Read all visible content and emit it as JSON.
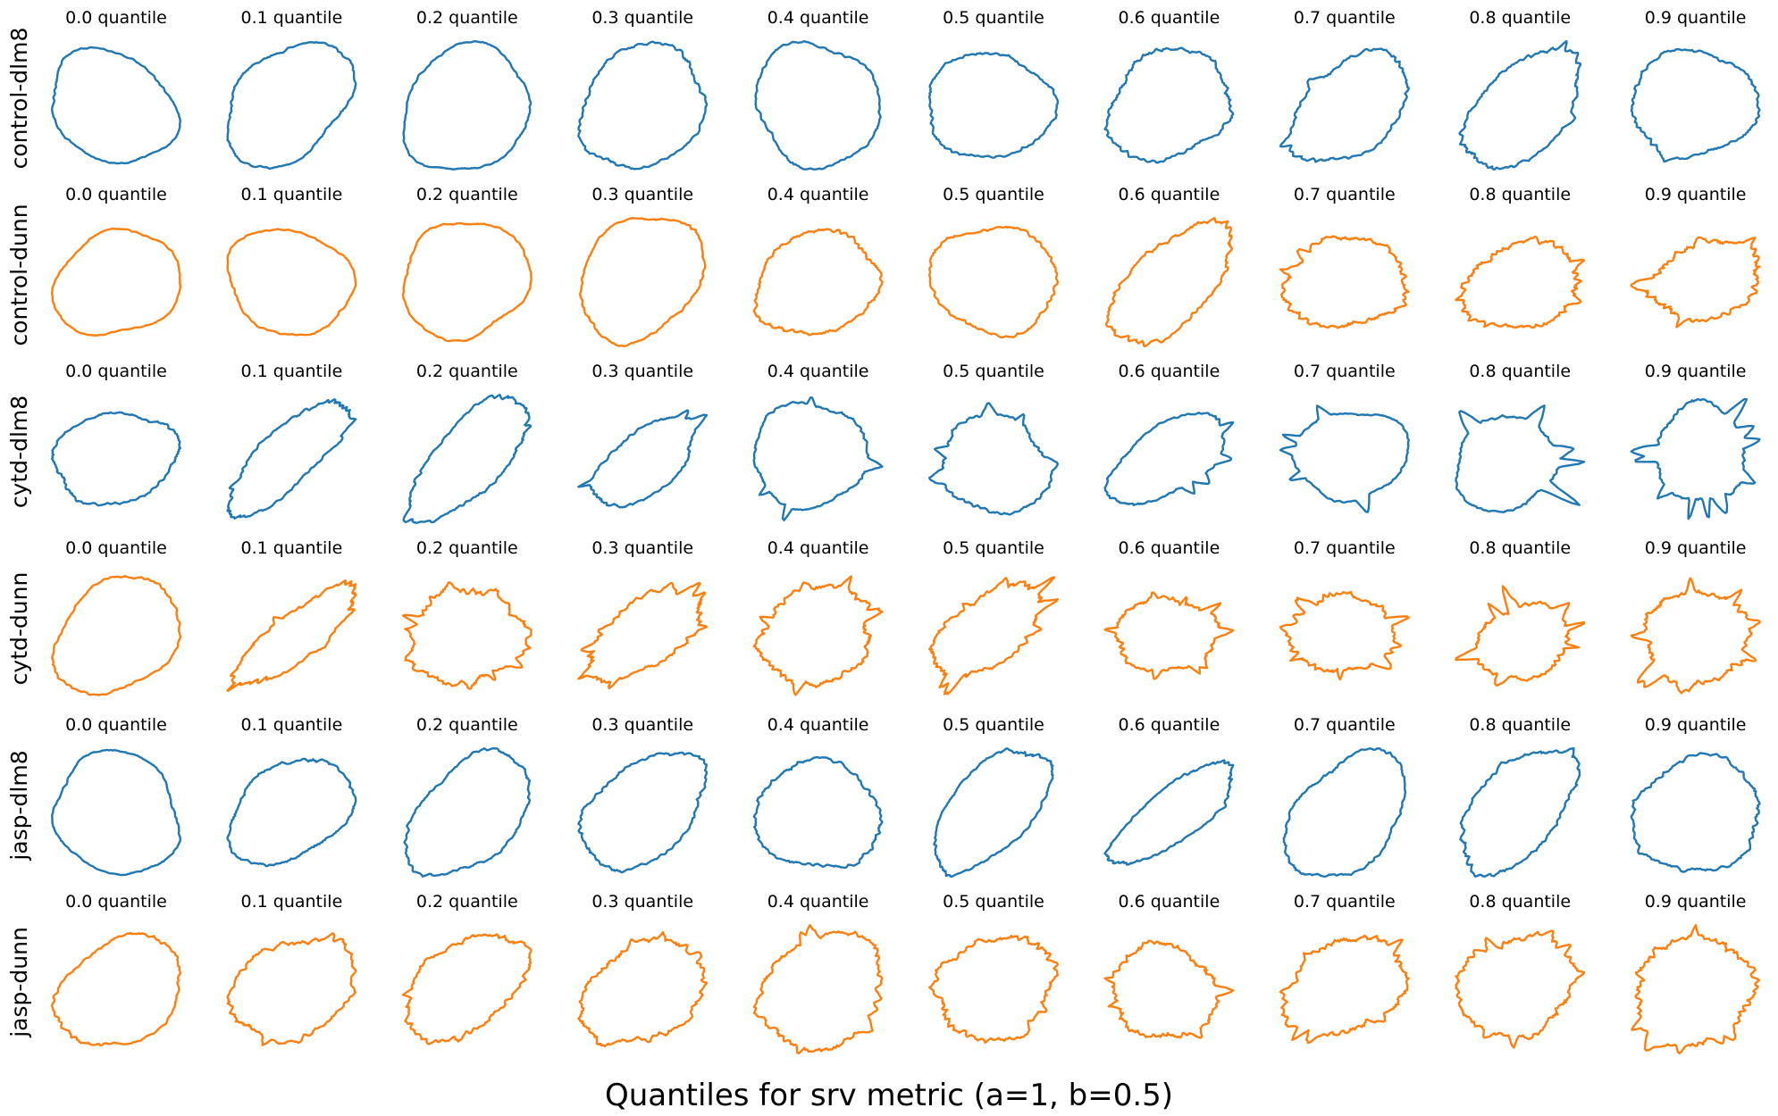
{
  "chart_data": {
    "type": "shape-grid",
    "title": "Quantiles for srv metric (a=1, b=0.5)",
    "columns": [
      "0.0 quantile",
      "0.1 quantile",
      "0.2 quantile",
      "0.3 quantile",
      "0.4 quantile",
      "0.5 quantile",
      "0.6 quantile",
      "0.7 quantile",
      "0.8 quantile",
      "0.9 quantile"
    ],
    "rows": [
      {
        "name": "control-dlm8",
        "color": "#1f77b4",
        "shapes": [
          {
            "aspect": 1.15,
            "tilt": -25,
            "spikes": 0,
            "spike_len": 0,
            "rough": 0.02
          },
          {
            "aspect": 1.35,
            "tilt": 40,
            "spikes": 0,
            "spike_len": 0,
            "rough": 0.03
          },
          {
            "aspect": 1.1,
            "tilt": 20,
            "spikes": 0,
            "spike_len": 0,
            "rough": 0.02
          },
          {
            "aspect": 1.3,
            "tilt": 45,
            "spikes": 0,
            "spike_len": 0,
            "rough": 0.04
          },
          {
            "aspect": 1.05,
            "tilt": 0,
            "spikes": 0,
            "spike_len": 0,
            "rough": 0.03
          },
          {
            "aspect": 1.1,
            "tilt": 10,
            "spikes": 0,
            "spike_len": 0,
            "rough": 0.04
          },
          {
            "aspect": 1.1,
            "tilt": 30,
            "spikes": 1,
            "spike_len": 0.1,
            "rough": 0.06
          },
          {
            "aspect": 1.6,
            "tilt": 35,
            "spikes": 2,
            "spike_len": 0.3,
            "rough": 0.05
          },
          {
            "aspect": 1.9,
            "tilt": 45,
            "spikes": 2,
            "spike_len": 0.2,
            "rough": 0.06
          },
          {
            "aspect": 1.25,
            "tilt": 15,
            "spikes": 1,
            "spike_len": 0.12,
            "rough": 0.05
          }
        ]
      },
      {
        "name": "control-dunn",
        "color": "#ff7f0e",
        "shapes": [
          {
            "aspect": 1.2,
            "tilt": 30,
            "spikes": 0,
            "spike_len": 0,
            "rough": 0.015
          },
          {
            "aspect": 1.1,
            "tilt": -20,
            "spikes": 0,
            "spike_len": 0,
            "rough": 0.02
          },
          {
            "aspect": 1.05,
            "tilt": 0,
            "spikes": 0,
            "spike_len": 0,
            "rough": 0.02
          },
          {
            "aspect": 1.4,
            "tilt": 40,
            "spikes": 0,
            "spike_len": 0,
            "rough": 0.03
          },
          {
            "aspect": 1.35,
            "tilt": 30,
            "spikes": 0,
            "spike_len": 0,
            "rough": 0.05
          },
          {
            "aspect": 1.1,
            "tilt": 10,
            "spikes": 0,
            "spike_len": 0,
            "rough": 0.04
          },
          {
            "aspect": 1.8,
            "tilt": 45,
            "spikes": 1,
            "spike_len": 0.1,
            "rough": 0.07
          },
          {
            "aspect": 1.3,
            "tilt": 0,
            "spikes": 3,
            "spike_len": 0.22,
            "rough": 0.09
          },
          {
            "aspect": 1.5,
            "tilt": 10,
            "spikes": 4,
            "spike_len": 0.22,
            "rough": 0.1
          },
          {
            "aspect": 1.6,
            "tilt": 20,
            "spikes": 5,
            "spike_len": 0.3,
            "rough": 0.1
          }
        ]
      },
      {
        "name": "cytd-dlm8",
        "color": "#1f77b4",
        "shapes": [
          {
            "aspect": 1.35,
            "tilt": 20,
            "spikes": 0,
            "spike_len": 0,
            "rough": 0.04
          },
          {
            "aspect": 2.6,
            "tilt": 45,
            "spikes": 3,
            "spike_len": 0.15,
            "rough": 0.06
          },
          {
            "aspect": 2.2,
            "tilt": 45,
            "spikes": 2,
            "spike_len": 0.2,
            "rough": 0.06
          },
          {
            "aspect": 2.1,
            "tilt": 35,
            "spikes": 3,
            "spike_len": 0.25,
            "rough": 0.05
          },
          {
            "aspect": 1.2,
            "tilt": 10,
            "spikes": 4,
            "spike_len": 0.3,
            "rough": 0.04
          },
          {
            "aspect": 1.1,
            "tilt": 0,
            "spikes": 5,
            "spike_len": 0.28,
            "rough": 0.05
          },
          {
            "aspect": 1.8,
            "tilt": 35,
            "spikes": 4,
            "spike_len": 0.35,
            "rough": 0.04
          },
          {
            "aspect": 1.2,
            "tilt": 0,
            "spikes": 5,
            "spike_len": 0.45,
            "rough": 0.03
          },
          {
            "aspect": 1.1,
            "tilt": 0,
            "spikes": 6,
            "spike_len": 0.55,
            "rough": 0.04
          },
          {
            "aspect": 1.0,
            "tilt": 0,
            "spikes": 10,
            "spike_len": 0.6,
            "rough": 0.05
          }
        ]
      },
      {
        "name": "cytd-dunn",
        "color": "#ff7f0e",
        "shapes": [
          {
            "aspect": 1.35,
            "tilt": 50,
            "spikes": 0,
            "spike_len": 0,
            "rough": 0.03
          },
          {
            "aspect": 3.0,
            "tilt": 40,
            "spikes": 4,
            "spike_len": 0.3,
            "rough": 0.08
          },
          {
            "aspect": 1.05,
            "tilt": 0,
            "spikes": 14,
            "spike_len": 0.18,
            "rough": 0.09
          },
          {
            "aspect": 2.0,
            "tilt": 30,
            "spikes": 8,
            "spike_len": 0.3,
            "rough": 0.1
          },
          {
            "aspect": 1.3,
            "tilt": 20,
            "spikes": 7,
            "spike_len": 0.35,
            "rough": 0.09
          },
          {
            "aspect": 2.0,
            "tilt": 40,
            "spikes": 8,
            "spike_len": 0.35,
            "rough": 0.1
          },
          {
            "aspect": 1.3,
            "tilt": 10,
            "spikes": 8,
            "spike_len": 0.45,
            "rough": 0.09
          },
          {
            "aspect": 1.2,
            "tilt": 0,
            "spikes": 10,
            "spike_len": 0.35,
            "rough": 0.1
          },
          {
            "aspect": 1.3,
            "tilt": 10,
            "spikes": 8,
            "spike_len": 0.5,
            "rough": 0.08
          },
          {
            "aspect": 1.2,
            "tilt": 0,
            "spikes": 10,
            "spike_len": 0.42,
            "rough": 0.1
          }
        ]
      },
      {
        "name": "jasp-dlm8",
        "color": "#1f77b4",
        "shapes": [
          {
            "aspect": 1.15,
            "tilt": -20,
            "spikes": 0,
            "spike_len": 0,
            "rough": 0.02
          },
          {
            "aspect": 1.4,
            "tilt": 40,
            "spikes": 0,
            "spike_len": 0,
            "rough": 0.04
          },
          {
            "aspect": 1.45,
            "tilt": 45,
            "spikes": 0,
            "spike_len": 0,
            "rough": 0.04
          },
          {
            "aspect": 1.5,
            "tilt": 35,
            "spikes": 0,
            "spike_len": 0,
            "rough": 0.05
          },
          {
            "aspect": 1.25,
            "tilt": -20,
            "spikes": 0,
            "spike_len": 0,
            "rough": 0.05
          },
          {
            "aspect": 2.1,
            "tilt": 50,
            "spikes": 0,
            "spike_len": 0,
            "rough": 0.04
          },
          {
            "aspect": 2.8,
            "tilt": 40,
            "spikes": 1,
            "spike_len": 0.1,
            "rough": 0.05
          },
          {
            "aspect": 1.4,
            "tilt": 50,
            "spikes": 0,
            "spike_len": 0,
            "rough": 0.04
          },
          {
            "aspect": 1.7,
            "tilt": 45,
            "spikes": 2,
            "spike_len": 0.15,
            "rough": 0.06
          },
          {
            "aspect": 1.2,
            "tilt": 0,
            "spikes": 2,
            "spike_len": 0.12,
            "rough": 0.05
          }
        ]
      },
      {
        "name": "jasp-dunn",
        "color": "#ff7f0e",
        "shapes": [
          {
            "aspect": 1.5,
            "tilt": 35,
            "spikes": 0,
            "spike_len": 0,
            "rough": 0.04
          },
          {
            "aspect": 1.4,
            "tilt": 35,
            "spikes": 4,
            "spike_len": 0.12,
            "rough": 0.07
          },
          {
            "aspect": 1.5,
            "tilt": 40,
            "spikes": 5,
            "spike_len": 0.15,
            "rough": 0.08
          },
          {
            "aspect": 1.3,
            "tilt": 20,
            "spikes": 6,
            "spike_len": 0.15,
            "rough": 0.08
          },
          {
            "aspect": 1.25,
            "tilt": 25,
            "spikes": 6,
            "spike_len": 0.18,
            "rough": 0.08
          },
          {
            "aspect": 1.4,
            "tilt": 30,
            "spikes": 6,
            "spike_len": 0.2,
            "rough": 0.09
          },
          {
            "aspect": 1.1,
            "tilt": 10,
            "spikes": 7,
            "spike_len": 0.2,
            "rough": 0.09
          },
          {
            "aspect": 1.3,
            "tilt": 30,
            "spikes": 6,
            "spike_len": 0.25,
            "rough": 0.09
          },
          {
            "aspect": 1.1,
            "tilt": 10,
            "spikes": 6,
            "spike_len": 0.25,
            "rough": 0.09
          },
          {
            "aspect": 1.1,
            "tilt": 0,
            "spikes": 8,
            "spike_len": 0.22,
            "rough": 0.1
          }
        ]
      }
    ]
  }
}
